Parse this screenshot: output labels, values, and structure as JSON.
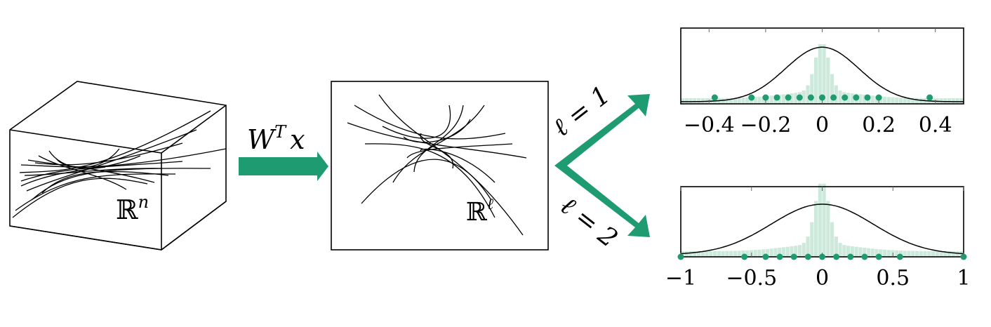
{
  "cube_label": "ℝ",
  "cube_label_sup": "n",
  "projection_label": "W",
  "projection_label_sup": "T",
  "projection_label_tail": "x",
  "plane_label": "ℝ",
  "plane_label_sup": "ℓ",
  "branch_top_label": "ℓ = 1",
  "branch_bottom_label": "ℓ = 2",
  "accent_color": "#1f9b72",
  "hist_color": "#cde9dc",
  "chart_data": [
    {
      "type": "bar",
      "xlim": [
        -0.5,
        0.5
      ],
      "xtick_labels": [
        "−0.4",
        "−0.2",
        "0",
        "0.2",
        "0.4"
      ],
      "xtick_values": [
        -0.4,
        -0.2,
        0,
        0.2,
        0.4
      ],
      "curve": "gaussian",
      "points": [
        -0.38,
        -0.25,
        -0.2,
        -0.16,
        -0.12,
        -0.08,
        -0.04,
        0,
        0.04,
        0.08,
        0.12,
        0.16,
        0.2,
        0.38
      ]
    },
    {
      "type": "bar",
      "xlim": [
        -1,
        1
      ],
      "xtick_labels": [
        "−1",
        "−0.5",
        "0",
        "0.5",
        "1"
      ],
      "xtick_values": [
        -1,
        -0.5,
        0,
        0.5,
        1
      ],
      "curve": "gaussian",
      "points": [
        -1,
        -0.55,
        -0.4,
        -0.3,
        -0.2,
        -0.1,
        0,
        0.1,
        0.2,
        0.3,
        0.4,
        0.55,
        1
      ]
    }
  ]
}
